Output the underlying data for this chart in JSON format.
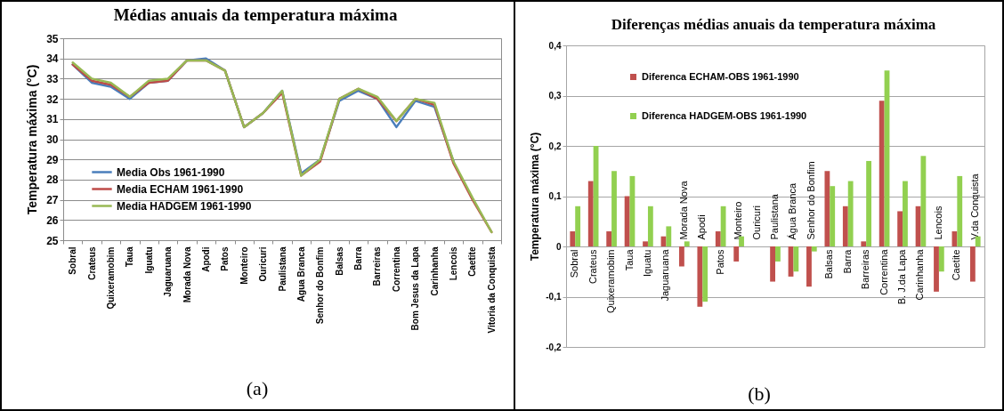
{
  "chart_data": [
    {
      "type": "line",
      "title": "Médias anuais da temperatura máxima",
      "ylabel": "Temperatura máxima (°C)",
      "categories": [
        "Sobral",
        "Crateus",
        "Quixeramobim",
        "Taua",
        "Iguatu",
        "Jaguaruana",
        "Morada Nova",
        "Apodi",
        "Patos",
        "Monteiro",
        "Ouricuri",
        "Paulistana",
        "Agua Branca",
        "Senhor do Bonfim",
        "Balsas",
        "Barra",
        "Barreiras",
        "Correntina",
        "Bom Jesus da Lapa",
        "Carinhanha",
        "Lencois",
        "Caetite",
        "Vitoria da Conquista"
      ],
      "series": [
        {
          "name": "Media Obs 1961-1990",
          "color": "#4a7ebb",
          "values": [
            33.7,
            32.8,
            32.6,
            32.0,
            32.8,
            32.9,
            33.9,
            34.0,
            33.4,
            30.6,
            31.3,
            32.4,
            28.3,
            29.0,
            31.9,
            32.4,
            32.0,
            30.6,
            31.9,
            31.6,
            28.9,
            null,
            null
          ]
        },
        {
          "name": "Media ECHAM 1961-1990",
          "color": "#be4b48",
          "values": [
            33.7,
            32.9,
            32.7,
            32.1,
            32.8,
            32.9,
            33.9,
            33.9,
            33.4,
            30.6,
            31.3,
            32.3,
            28.2,
            28.9,
            32.0,
            32.5,
            32.0,
            30.9,
            32.0,
            31.7,
            28.8,
            27.0,
            25.4
          ]
        },
        {
          "name": "Media HADGEM 1961-1990",
          "color": "#98b954",
          "values": [
            33.8,
            33.0,
            32.8,
            32.1,
            32.9,
            33.0,
            33.9,
            33.9,
            33.4,
            30.6,
            31.3,
            32.4,
            28.2,
            29.0,
            32.0,
            32.5,
            32.1,
            30.9,
            32.0,
            31.8,
            28.9,
            27.1,
            25.4
          ]
        }
      ],
      "ylim": [
        25,
        35
      ],
      "yticks": [
        25,
        26,
        27,
        28,
        29,
        30,
        31,
        32,
        33,
        34,
        35
      ],
      "grid": "y",
      "legend": "bottom left",
      "annotations": [
        "(a)"
      ]
    },
    {
      "type": "bar",
      "title": "Diferenças médias anuais da temperatura máxima",
      "ylabel": "Temperatura máxima (°C)",
      "categories": [
        "Sobral",
        "Crateus",
        "Quixeramobim",
        "Taua",
        "Iguatu",
        "Jaguaruana",
        "Morada Nova",
        "Apodi",
        "Patos",
        "Monteiro",
        "Ouricuri",
        "Paulistana",
        "Água Branca",
        "Senhor do Bonfim",
        "Balsas",
        "Barra",
        "Barreiras",
        "Correntina",
        "B. J.da Lapa",
        "Carinhanha",
        "Lencois",
        "Caetite",
        "V.da Conquista"
      ],
      "series": [
        {
          "name": "Diferenca ECHAM-OBS 1961-1990",
          "color": "#c0504d",
          "values": [
            0.03,
            0.13,
            0.03,
            0.1,
            0.01,
            0.02,
            -0.04,
            -0.12,
            0.03,
            -0.03,
            0,
            -0.07,
            -0.06,
            -0.08,
            0.15,
            0.08,
            0.01,
            0.29,
            0.07,
            0.08,
            -0.09,
            0.03,
            -0.07
          ]
        },
        {
          "name": "Diferenca HADGEM-OBS 1961-1990",
          "color": "#92d050",
          "values": [
            0.08,
            0.2,
            0.15,
            0.14,
            0.08,
            0.04,
            0.01,
            -0.11,
            0.08,
            0.02,
            0,
            -0.03,
            -0.05,
            -0.01,
            0.12,
            0.13,
            0.17,
            0.35,
            0.13,
            0.18,
            -0.05,
            0.14,
            0.02
          ]
        }
      ],
      "ylim": [
        -0.2,
        0.4
      ],
      "yticks": [
        {
          "value": -0.2,
          "label": "-0,2"
        },
        {
          "value": -0.1,
          "label": "-0,1"
        },
        0,
        {
          "value": 0.1,
          "label": "0,1"
        },
        {
          "value": 0.2,
          "label": "0,2"
        },
        {
          "value": 0.3,
          "label": "0,3"
        },
        {
          "value": 0.4,
          "label": "0,4"
        }
      ],
      "grid": "y",
      "legend": "top left",
      "annotations": [
        "(b)"
      ]
    }
  ]
}
